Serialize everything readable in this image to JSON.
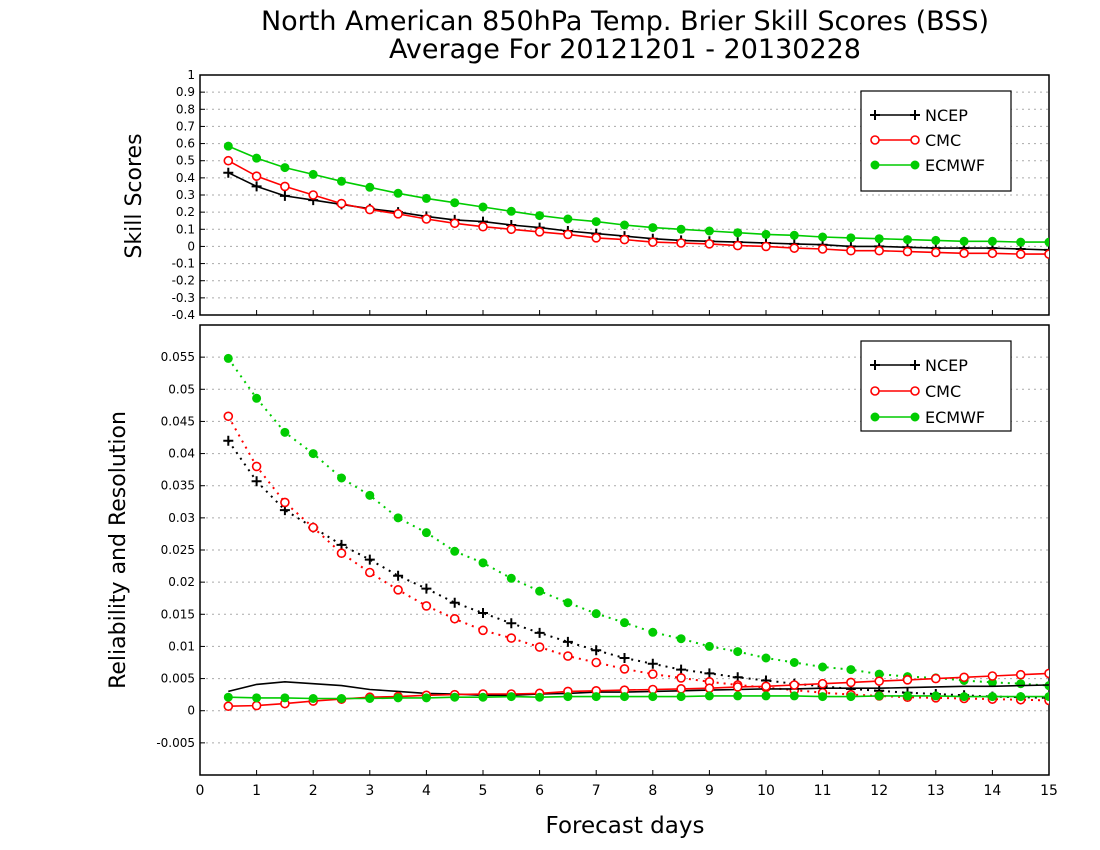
{
  "chart_data": [
    {
      "type": "line",
      "title": "North American 850hPa Temp. Brier Skill Scores (BSS)",
      "subtitle": "Average For 20121201 - 20130228",
      "ylabel": "Skill Scores",
      "xlabel": "",
      "xlim": [
        0,
        15
      ],
      "ylim": [
        -0.4,
        1
      ],
      "yticks": [
        -0.4,
        -0.3,
        -0.2,
        -0.1,
        0,
        0.1,
        0.2,
        0.3,
        0.4,
        0.5,
        0.6,
        0.7,
        0.8,
        0.9,
        1
      ],
      "ytick_labels": [
        "-0.4",
        "-0.3",
        "-0.2",
        "-0.1",
        "0",
        "0.1",
        "0.2",
        "0.3",
        "0.4",
        "0.5",
        "0.6",
        "0.7",
        "0.8",
        "0.9",
        "1"
      ],
      "grid": "horizontal dotted",
      "legend": "top-right",
      "x": [
        0.5,
        1,
        1.5,
        2,
        2.5,
        3,
        3.5,
        4,
        4.5,
        5,
        5.5,
        6,
        6.5,
        7,
        7.5,
        8,
        8.5,
        9,
        9.5,
        10,
        10.5,
        11,
        11.5,
        12,
        12.5,
        13,
        13.5,
        14,
        14.5,
        15
      ],
      "series": [
        {
          "name": "NCEP",
          "color": "#000000",
          "marker": "plus",
          "line": "solid",
          "values": [
            0.43,
            0.35,
            0.295,
            0.27,
            0.245,
            0.22,
            0.2,
            0.175,
            0.155,
            0.145,
            0.125,
            0.11,
            0.09,
            0.075,
            0.06,
            0.045,
            0.035,
            0.03,
            0.025,
            0.02,
            0.015,
            0.01,
            0.0,
            0.0,
            -0.005,
            -0.01,
            -0.01,
            -0.01,
            -0.015,
            -0.02
          ]
        },
        {
          "name": "CMC",
          "color": "#ff0000",
          "marker": "open-circle",
          "line": "solid",
          "values": [
            0.5,
            0.41,
            0.35,
            0.3,
            0.25,
            0.215,
            0.19,
            0.16,
            0.135,
            0.115,
            0.1,
            0.085,
            0.07,
            0.05,
            0.04,
            0.025,
            0.02,
            0.015,
            0.005,
            0.0,
            -0.01,
            -0.015,
            -0.025,
            -0.025,
            -0.03,
            -0.035,
            -0.04,
            -0.04,
            -0.045,
            -0.045
          ]
        },
        {
          "name": "ECMWF",
          "color": "#00cc00",
          "marker": "filled-circle",
          "line": "solid",
          "values": [
            0.585,
            0.515,
            0.46,
            0.42,
            0.38,
            0.345,
            0.31,
            0.28,
            0.255,
            0.23,
            0.205,
            0.18,
            0.16,
            0.145,
            0.125,
            0.11,
            0.1,
            0.09,
            0.08,
            0.07,
            0.065,
            0.055,
            0.05,
            0.045,
            0.04,
            0.035,
            0.03,
            0.03,
            0.025,
            0.025
          ]
        }
      ]
    },
    {
      "type": "line",
      "title": "",
      "ylabel": "Reliability and Resolution",
      "xlabel": "Forecast days",
      "xlim": [
        0,
        15
      ],
      "ylim": [
        -0.01,
        0.06
      ],
      "xticks": [
        0,
        1,
        2,
        3,
        4,
        5,
        6,
        7,
        8,
        9,
        10,
        11,
        12,
        13,
        14,
        15
      ],
      "xtick_labels": [
        "0",
        "1",
        "2",
        "3",
        "4",
        "5",
        "6",
        "7",
        "8",
        "9",
        "10",
        "11",
        "12",
        "13",
        "14",
        "15"
      ],
      "yticks": [
        -0.005,
        0,
        0.005,
        0.01,
        0.015,
        0.02,
        0.025,
        0.03,
        0.035,
        0.04,
        0.045,
        0.05,
        0.055
      ],
      "ytick_labels": [
        "-0.005",
        "0",
        "0.005",
        "0.01",
        "0.015",
        "0.02",
        "0.025",
        "0.03",
        "0.035",
        "0.04",
        "0.045",
        "0.05",
        "0.055"
      ],
      "grid": "horizontal dotted",
      "legend": "top-right",
      "x": [
        0.5,
        1,
        1.5,
        2,
        2.5,
        3,
        3.5,
        4,
        4.5,
        5,
        5.5,
        6,
        6.5,
        7,
        7.5,
        8,
        8.5,
        9,
        9.5,
        10,
        10.5,
        11,
        11.5,
        12,
        12.5,
        13,
        13.5,
        14,
        14.5,
        15
      ],
      "series": [
        {
          "name": "NCEP",
          "kind": "resolution",
          "color": "#000000",
          "marker": "plus",
          "line": "dotted",
          "values": [
            0.042,
            0.0357,
            0.0312,
            0.0285,
            0.0258,
            0.0235,
            0.021,
            0.019,
            0.0168,
            0.0152,
            0.0136,
            0.0121,
            0.0107,
            0.0094,
            0.0082,
            0.0073,
            0.0064,
            0.0058,
            0.0052,
            0.0047,
            0.0042,
            0.0038,
            0.0034,
            0.0031,
            0.0028,
            0.0026,
            0.0024,
            0.0022,
            0.0021,
            0.002
          ]
        },
        {
          "name": "CMC",
          "kind": "resolution",
          "color": "#ff0000",
          "marker": "open-circle",
          "line": "dotted",
          "values": [
            0.0458,
            0.038,
            0.0324,
            0.0285,
            0.0245,
            0.0215,
            0.0188,
            0.0163,
            0.0143,
            0.0125,
            0.0113,
            0.0099,
            0.0085,
            0.0075,
            0.0065,
            0.0057,
            0.0051,
            0.0045,
            0.004,
            0.0036,
            0.0032,
            0.0028,
            0.0025,
            0.0023,
            0.0021,
            0.002,
            0.0019,
            0.0018,
            0.0017,
            0.0016
          ]
        },
        {
          "name": "ECMWF",
          "kind": "resolution",
          "color": "#00cc00",
          "marker": "filled-circle",
          "line": "dotted",
          "values": [
            0.0548,
            0.0486,
            0.0433,
            0.04,
            0.0362,
            0.0335,
            0.03,
            0.0277,
            0.0248,
            0.023,
            0.0206,
            0.0186,
            0.0168,
            0.0151,
            0.0137,
            0.0122,
            0.0112,
            0.01,
            0.0092,
            0.0082,
            0.0075,
            0.0068,
            0.0064,
            0.0057,
            0.0053,
            0.0051,
            0.0047,
            0.0044,
            0.0042,
            0.0039
          ]
        },
        {
          "name": "NCEP",
          "kind": "reliability",
          "color": "#000000",
          "marker": "none",
          "line": "solid",
          "values": [
            0.003,
            0.0041,
            0.0045,
            0.0042,
            0.0039,
            0.0033,
            0.003,
            0.0027,
            0.0026,
            0.0024,
            0.0024,
            0.0026,
            0.0027,
            0.0029,
            0.0029,
            0.003,
            0.0031,
            0.0032,
            0.0033,
            0.0034,
            0.0034,
            0.0035,
            0.0035,
            0.0035,
            0.0036,
            0.0037,
            0.0038,
            0.0038,
            0.0039,
            0.004
          ]
        },
        {
          "name": "CMC",
          "kind": "reliability",
          "color": "#ff0000",
          "marker": "open-circle",
          "line": "solid",
          "values": [
            0.0007,
            0.0008,
            0.0011,
            0.0015,
            0.0018,
            0.0021,
            0.0022,
            0.0024,
            0.0025,
            0.0026,
            0.0026,
            0.0027,
            0.003,
            0.0031,
            0.0032,
            0.0033,
            0.0034,
            0.0035,
            0.0037,
            0.0038,
            0.004,
            0.0042,
            0.0044,
            0.0046,
            0.0048,
            0.005,
            0.0052,
            0.0054,
            0.0056,
            0.0058
          ]
        },
        {
          "name": "ECMWF",
          "kind": "reliability",
          "color": "#00cc00",
          "marker": "filled-circle",
          "line": "solid",
          "values": [
            0.0021,
            0.002,
            0.002,
            0.0019,
            0.0019,
            0.0019,
            0.002,
            0.002,
            0.0021,
            0.0021,
            0.0022,
            0.0021,
            0.0022,
            0.0022,
            0.0022,
            0.0022,
            0.0022,
            0.0023,
            0.0023,
            0.0023,
            0.0023,
            0.0022,
            0.0022,
            0.0023,
            0.0023,
            0.0023,
            0.0022,
            0.0022,
            0.0022,
            0.0022
          ]
        }
      ],
      "legend_entries": [
        {
          "name": "NCEP",
          "color": "#000000",
          "marker": "plus"
        },
        {
          "name": "CMC",
          "color": "#ff0000",
          "marker": "open-circle"
        },
        {
          "name": "ECMWF",
          "color": "#00cc00",
          "marker": "filled-circle"
        }
      ]
    }
  ]
}
